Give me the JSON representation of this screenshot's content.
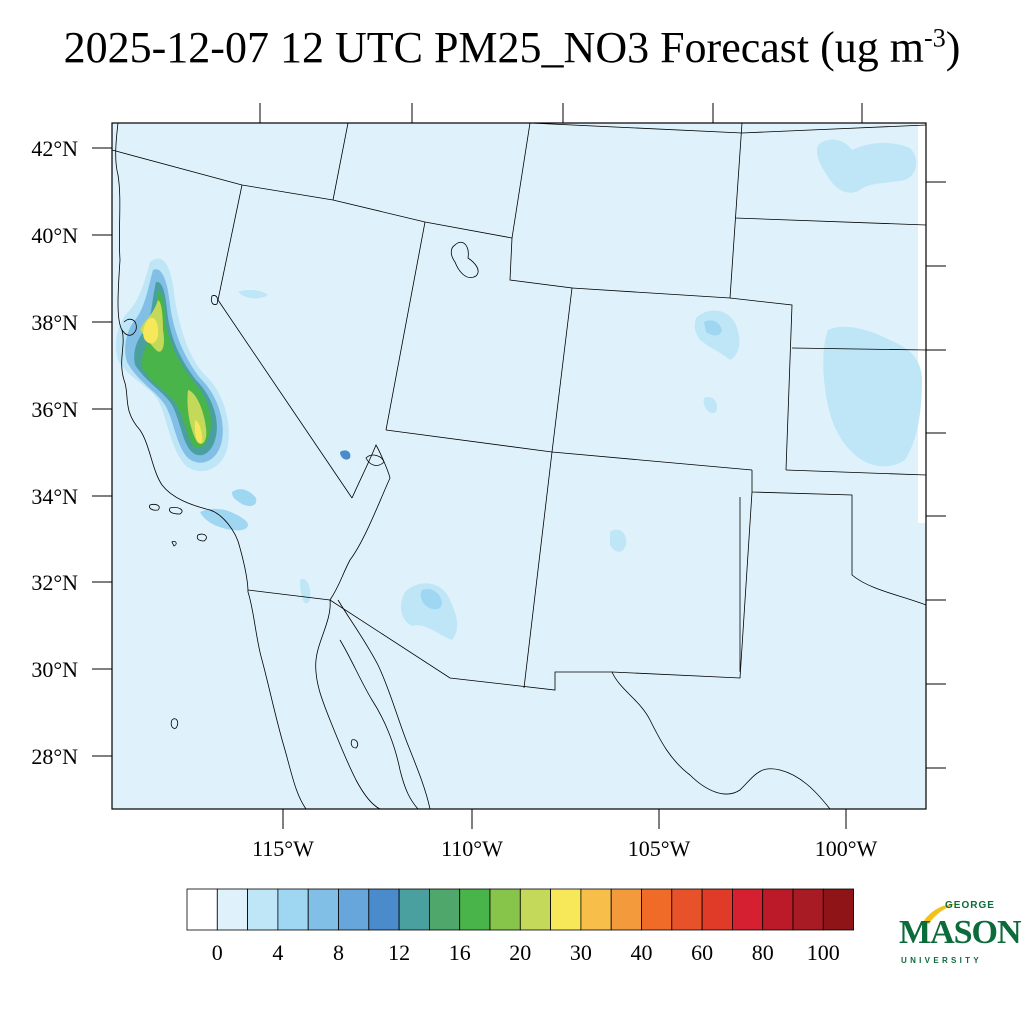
{
  "title": {
    "main": "2025-12-07 12 UTC PM25_NO3 Forecast (ug m",
    "superscript": "-3",
    "close": ")"
  },
  "map": {
    "background_color": "#dff2fb",
    "lat_labels": [
      "42°N",
      "40°N",
      "38°N",
      "36°N",
      "34°N",
      "32°N",
      "30°N",
      "28°N"
    ],
    "lon_labels": [
      "115°W",
      "110°W",
      "105°W",
      "100°W"
    ]
  },
  "colorbar": {
    "colors": [
      "#ffffff",
      "#dff2fb",
      "#bfe6f7",
      "#9fd7f3",
      "#82bfe6",
      "#66a6da",
      "#4a8bcc",
      "#4a9f9f",
      "#4fa76c",
      "#49b449",
      "#87c54a",
      "#c4d95a",
      "#f7e85a",
      "#f7bf4a",
      "#f39a3c",
      "#f06a28",
      "#e8522a",
      "#e03a28",
      "#d42030",
      "#bc1a28",
      "#a81a24",
      "#8e1418"
    ],
    "labels": [
      "0",
      "4",
      "8",
      "12",
      "16",
      "20",
      "30",
      "40",
      "60",
      "80",
      "100"
    ]
  },
  "logo": {
    "top": "GEORGE",
    "name": "MASON",
    "bottom": "UNIVERSITY",
    "color": "#0b6b3a",
    "accent": "#f2c21a"
  }
}
